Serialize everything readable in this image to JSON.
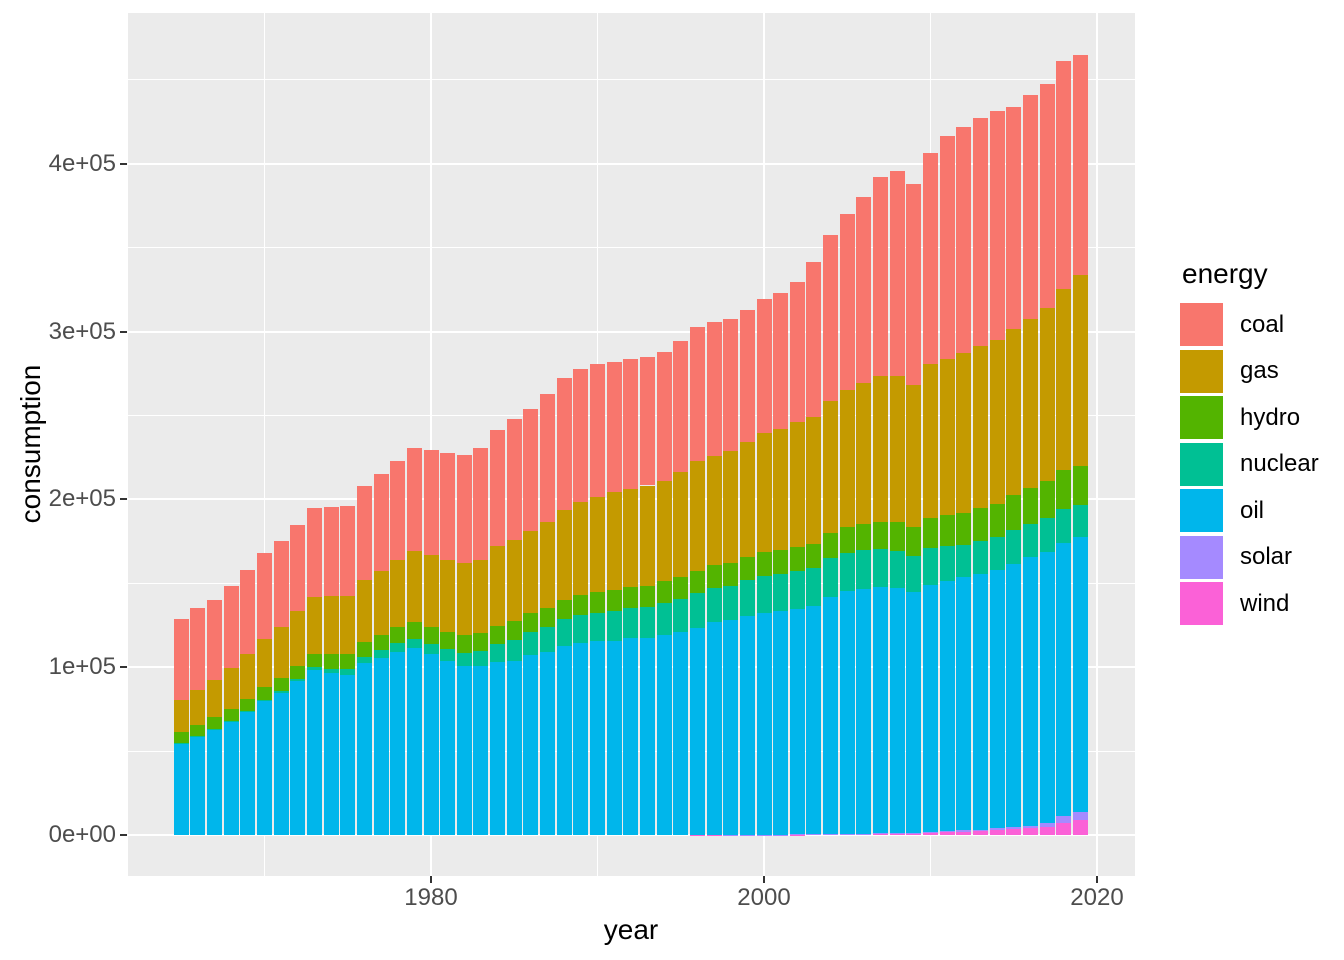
{
  "y_axis": {
    "title": "consumption",
    "ticks": [
      {
        "label": "0e+00",
        "value": 0
      },
      {
        "label": "1e+05",
        "value": 100000
      },
      {
        "label": "2e+05",
        "value": 200000
      },
      {
        "label": "3e+05",
        "value": 300000
      },
      {
        "label": "4e+05",
        "value": 400000
      }
    ],
    "minor_values": [
      50000,
      150000,
      250000,
      350000,
      450000
    ]
  },
  "x_axis": {
    "title": "year",
    "ticks": [
      {
        "label": "1980",
        "value": 1980
      },
      {
        "label": "2000",
        "value": 2000
      },
      {
        "label": "2020",
        "value": 2020
      }
    ],
    "minor_values": [
      1970,
      1990,
      2010
    ]
  },
  "legend": {
    "title": "energy",
    "entries": [
      {
        "label": "coal",
        "color": "#F8766D"
      },
      {
        "label": "gas",
        "color": "#C49A00"
      },
      {
        "label": "hydro",
        "color": "#53B400"
      },
      {
        "label": "nuclear",
        "color": "#00C094"
      },
      {
        "label": "oil",
        "color": "#00B6EB"
      },
      {
        "label": "solar",
        "color": "#A58AFF"
      },
      {
        "label": "wind",
        "color": "#FB61D7"
      }
    ]
  },
  "panel_background": "#EBEBEB",
  "gridline_color": "#FFFFFF",
  "chart_data": {
    "type": "bar",
    "stacked": true,
    "title": "",
    "xlabel": "year",
    "ylabel": "consumption",
    "ylim": [
      0,
      488000
    ],
    "xlim": [
      1962,
      2022
    ],
    "grid": true,
    "legend_position": "right",
    "x": [
      1965,
      1966,
      1967,
      1968,
      1969,
      1970,
      1971,
      1972,
      1973,
      1974,
      1975,
      1976,
      1977,
      1978,
      1979,
      1980,
      1981,
      1982,
      1983,
      1984,
      1985,
      1986,
      1987,
      1988,
      1989,
      1990,
      1991,
      1992,
      1993,
      1994,
      1995,
      1996,
      1997,
      1998,
      1999,
      2000,
      2001,
      2002,
      2003,
      2004,
      2005,
      2006,
      2007,
      2008,
      2009,
      2010,
      2011,
      2012,
      2013,
      2014,
      2015,
      2016,
      2017,
      2018,
      2019
    ],
    "stack_order_bottom_to_top": [
      "wind",
      "solar",
      "oil",
      "nuclear",
      "hydro",
      "gas",
      "coal"
    ],
    "series": [
      {
        "name": "wind",
        "color": "#FB61D7",
        "values": [
          0,
          0,
          0,
          0,
          0,
          0,
          0,
          0,
          0,
          0,
          0,
          0,
          0,
          0,
          0,
          0,
          0,
          0,
          0,
          0,
          1,
          2,
          3,
          5,
          8,
          12,
          16,
          21,
          27,
          34,
          42,
          52,
          65,
          85,
          115,
          150,
          190,
          240,
          300,
          380,
          480,
          580,
          650,
          700,
          850,
          1100,
          1500,
          2000,
          2400,
          3000,
          3400,
          4000,
          4900,
          6900,
          8900
        ]
      },
      {
        "name": "solar",
        "color": "#A58AFF",
        "values": [
          0,
          0,
          0,
          0,
          0,
          0,
          0,
          0,
          0,
          0,
          0,
          0,
          0,
          0,
          0,
          0,
          0,
          0,
          0,
          0,
          1,
          2,
          4,
          6,
          8,
          10,
          13,
          16,
          20,
          24,
          28,
          33,
          40,
          48,
          58,
          70,
          85,
          100,
          120,
          150,
          180,
          220,
          280,
          360,
          440,
          550,
          650,
          750,
          850,
          950,
          1100,
          1500,
          2400,
          4400,
          4900
        ]
      },
      {
        "name": "oil",
        "color": "#00B6EB",
        "values": [
          54500,
          58500,
          62800,
          67500,
          73200,
          79900,
          84700,
          91500,
          98200,
          96700,
          95600,
          102200,
          105600,
          109300,
          111500,
          107700,
          103400,
          100900,
          100600,
          103100,
          103700,
          107100,
          108900,
          112400,
          114500,
          115400,
          115700,
          117300,
          117200,
          119300,
          120700,
          123400,
          126800,
          127700,
          130100,
          132000,
          133100,
          134400,
          136300,
          141500,
          144500,
          145800,
          147100,
          146300,
          143300,
          147500,
          149200,
          150700,
          152500,
          153900,
          157200,
          159900,
          161300,
          162600,
          163800
        ]
      },
      {
        "name": "nuclear",
        "color": "#00C094",
        "values": [
          200,
          300,
          350,
          450,
          500,
          670,
          930,
          1300,
          1700,
          2300,
          3100,
          3700,
          4600,
          5300,
          5500,
          6100,
          7200,
          7800,
          8800,
          10700,
          12700,
          13600,
          14800,
          16100,
          16600,
          17000,
          17800,
          18000,
          18600,
          18900,
          19800,
          20500,
          20300,
          20700,
          21500,
          22000,
          22400,
          22700,
          22100,
          22900,
          22800,
          23000,
          22400,
          22100,
          21700,
          22100,
          21100,
          19500,
          19500,
          19800,
          20000,
          20100,
          20200,
          20600,
          19000
        ]
      },
      {
        "name": "hydro",
        "color": "#53B400",
        "values": [
          6700,
          6900,
          7000,
          7200,
          7400,
          7600,
          7800,
          8000,
          8100,
          8700,
          8900,
          8900,
          9100,
          9600,
          9900,
          10100,
          10300,
          10500,
          10800,
          11000,
          11100,
          11400,
          11500,
          11800,
          11800,
          12100,
          12200,
          12300,
          12700,
          12800,
          13300,
          13500,
          13700,
          13800,
          13900,
          14200,
          13900,
          14200,
          14300,
          14800,
          15400,
          16000,
          16200,
          16900,
          17000,
          17700,
          18100,
          18800,
          19300,
          19700,
          20800,
          21400,
          22000,
          22800,
          23400
        ]
      },
      {
        "name": "gas",
        "color": "#C49A00",
        "values": [
          18900,
          20600,
          22000,
          24100,
          26500,
          28800,
          30800,
          32600,
          33800,
          34700,
          34600,
          37000,
          38000,
          39700,
          42200,
          42700,
          43200,
          43100,
          43700,
          47200,
          48500,
          49000,
          51500,
          53600,
          55700,
          57100,
          58400,
          58600,
          59700,
          59900,
          62300,
          65300,
          65200,
          66700,
          68600,
          71000,
          72000,
          74200,
          76000,
          79000,
          81500,
          83500,
          87000,
          87300,
          84700,
          91500,
          93200,
          95700,
          96900,
          97500,
          99000,
          100800,
          103300,
          108000,
          113500
        ]
      },
      {
        "name": "coal",
        "color": "#F8766D",
        "values": [
          48400,
          49000,
          48100,
          49300,
          50300,
          50900,
          50800,
          51300,
          53000,
          53300,
          54100,
          56200,
          57900,
          58800,
          61700,
          62600,
          63300,
          64300,
          66400,
          69100,
          71900,
          73000,
          75900,
          78300,
          79100,
          78800,
          77700,
          77100,
          76800,
          77100,
          77900,
          79700,
          79300,
          78500,
          78400,
          80000,
          81200,
          83600,
          92500,
          99000,
          105000,
          111000,
          118500,
          122000,
          120000,
          126000,
          133000,
          134500,
          135500,
          136500,
          132500,
          133000,
          133500,
          136000,
          131200
        ]
      }
    ]
  }
}
